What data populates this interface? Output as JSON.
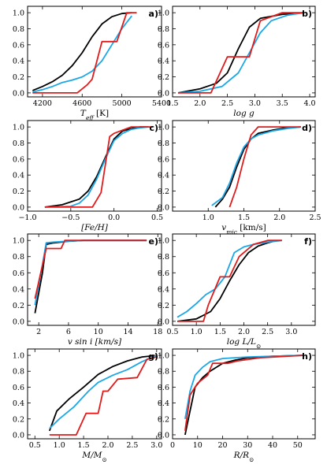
{
  "colors": {
    "black": "#000000",
    "blue": "#1aa7e8",
    "red": "#e01b1b"
  },
  "chart_data": [
    {
      "type": "line",
      "panel_label": "a)",
      "xlabel": "T_eff [K]",
      "xlim": [
        4050,
        5400
      ],
      "ylim": [
        -0.05,
        1.08
      ],
      "xticks": [
        4200,
        4600,
        5000,
        5400
      ],
      "xtick_labels": [
        "4200",
        "4600",
        "5000",
        "5400"
      ],
      "yticks": [
        0,
        0.2,
        0.4,
        0.6,
        0.8,
        1.0
      ],
      "ytick_labels": [
        "0.0",
        "0.2",
        "0.4",
        "0.6",
        "0.8",
        "1.0"
      ],
      "series": [
        {
          "color": "black",
          "x": [
            4100,
            4200,
            4300,
            4400,
            4500,
            4600,
            4700,
            4800,
            4900,
            5000,
            5100
          ],
          "y": [
            0.03,
            0.08,
            0.14,
            0.22,
            0.34,
            0.5,
            0.7,
            0.86,
            0.95,
            0.99,
            1.0
          ]
        },
        {
          "color": "blue",
          "x": [
            4100,
            4200,
            4300,
            4400,
            4500,
            4600,
            4700,
            4800,
            4900,
            5000,
            5100
          ],
          "y": [
            0.01,
            0.04,
            0.08,
            0.13,
            0.16,
            0.2,
            0.27,
            0.4,
            0.6,
            0.8,
            0.96
          ]
        },
        {
          "color": "red",
          "x": [
            4100,
            4550,
            4650,
            4700,
            4800,
            4950,
            5050,
            5150
          ],
          "y": [
            0.0,
            0.0,
            0.1,
            0.17,
            0.64,
            0.64,
            1.0,
            1.0
          ]
        }
      ]
    },
    {
      "type": "line",
      "panel_label": "b)",
      "xlabel": "log g",
      "xlim": [
        1.5,
        4.1
      ],
      "ylim": [
        -0.05,
        1.08
      ],
      "xticks": [
        1.5,
        2.0,
        2.5,
        3.0,
        3.5,
        4.0
      ],
      "xtick_labels": [
        "1.5",
        "2.0",
        "2.5",
        "3.0",
        "3.5",
        "4.0"
      ],
      "yticks": [
        0,
        0.2,
        0.4,
        0.6,
        0.8,
        1.0
      ],
      "ytick_labels": [
        "0.0",
        "0.2",
        "0.4",
        "0.6",
        "0.8",
        "1.0"
      ],
      "series": [
        {
          "color": "black",
          "x": [
            1.6,
            2.0,
            2.3,
            2.5,
            2.7,
            2.9,
            3.1,
            3.5,
            3.9
          ],
          "y": [
            0.0,
            0.05,
            0.12,
            0.25,
            0.55,
            0.82,
            0.93,
            0.98,
            1.0
          ]
        },
        {
          "color": "blue",
          "x": [
            1.6,
            2.0,
            2.4,
            2.7,
            2.9,
            3.1,
            3.3,
            3.6,
            3.9
          ],
          "y": [
            0.0,
            0.02,
            0.08,
            0.25,
            0.5,
            0.75,
            0.9,
            0.97,
            1.0
          ]
        },
        {
          "color": "red",
          "x": [
            1.6,
            2.2,
            2.5,
            2.9,
            3.1,
            3.5,
            3.9
          ],
          "y": [
            0.0,
            0.0,
            0.45,
            0.45,
            0.9,
            1.0,
            1.0
          ]
        }
      ]
    },
    {
      "type": "line",
      "panel_label": "c)",
      "xlabel": "[Fe/H]",
      "xlim": [
        -1.0,
        0.55
      ],
      "ylim": [
        -0.05,
        1.08
      ],
      "xticks": [
        -1.0,
        -0.5,
        0.0,
        0.5
      ],
      "xtick_labels": [
        "−1.0",
        "−0.5",
        "0.0",
        "0.5"
      ],
      "yticks": [
        0,
        0.2,
        0.4,
        0.6,
        0.8,
        1.0
      ],
      "ytick_labels": [
        "0.0",
        "0.2",
        "0.4",
        "0.6",
        "0.8",
        "1.0"
      ],
      "series": [
        {
          "color": "black",
          "x": [
            -0.8,
            -0.6,
            -0.4,
            -0.3,
            -0.2,
            -0.1,
            0.0,
            0.1,
            0.2,
            0.3,
            0.4
          ],
          "y": [
            0.0,
            0.03,
            0.1,
            0.2,
            0.38,
            0.62,
            0.85,
            0.95,
            0.98,
            1.0,
            1.0
          ]
        },
        {
          "color": "blue",
          "x": [
            -0.8,
            -0.5,
            -0.4,
            -0.3,
            -0.2,
            -0.1,
            0.0,
            0.1,
            0.2,
            0.3,
            0.4
          ],
          "y": [
            0.0,
            0.01,
            0.05,
            0.15,
            0.35,
            0.6,
            0.83,
            0.92,
            0.97,
            0.99,
            1.0
          ]
        },
        {
          "color": "red",
          "x": [
            -0.8,
            -0.25,
            -0.15,
            -0.05,
            0.0,
            0.1,
            0.2,
            0.45
          ],
          "y": [
            0.0,
            0.0,
            0.18,
            0.88,
            0.92,
            0.96,
            1.0,
            1.0
          ]
        }
      ]
    },
    {
      "type": "line",
      "panel_label": "d)",
      "xlabel": "v_mic [km/s]",
      "xlim": [
        0.5,
        2.5
      ],
      "ylim": [
        -0.05,
        1.08
      ],
      "xticks": [
        1.0,
        1.5,
        2.0,
        2.5
      ],
      "xtick_labels": [
        "1.0",
        "1.5",
        "2.0",
        "2.5"
      ],
      "yticks": [
        0,
        0.2,
        0.4,
        0.6,
        0.8,
        1.0
      ],
      "ytick_labels": [
        "0.0",
        "0.2",
        "0.4",
        "0.6",
        "0.8",
        "1.0"
      ],
      "series": [
        {
          "color": "black",
          "x": [
            1.1,
            1.2,
            1.3,
            1.4,
            1.5,
            1.6,
            1.7,
            1.9,
            2.1,
            2.3
          ],
          "y": [
            0.0,
            0.1,
            0.25,
            0.5,
            0.72,
            0.85,
            0.92,
            0.96,
            0.99,
            1.0
          ]
        },
        {
          "color": "blue",
          "x": [
            1.05,
            1.2,
            1.3,
            1.4,
            1.5,
            1.6,
            1.7,
            1.9,
            2.1,
            2.3
          ],
          "y": [
            0.02,
            0.12,
            0.3,
            0.55,
            0.75,
            0.85,
            0.9,
            0.95,
            0.98,
            1.0
          ]
        },
        {
          "color": "red",
          "x": [
            1.3,
            1.4,
            1.5,
            1.6,
            1.7,
            2.0,
            2.3
          ],
          "y": [
            0.0,
            0.25,
            0.6,
            0.9,
            1.0,
            1.0,
            1.0
          ]
        }
      ]
    },
    {
      "type": "line",
      "panel_label": "e)",
      "xlabel": "v sin i [km/s]",
      "xlim": [
        0.5,
        18.5
      ],
      "ylim": [
        -0.05,
        1.08
      ],
      "xticks": [
        2,
        6,
        10,
        14,
        18
      ],
      "xtick_labels": [
        "2",
        "6",
        "10",
        "14",
        "18"
      ],
      "yticks": [
        0,
        0.2,
        0.4,
        0.6,
        0.8,
        1.0
      ],
      "ytick_labels": [
        "0.0",
        "0.2",
        "0.4",
        "0.6",
        "0.8",
        "1.0"
      ],
      "series": [
        {
          "color": "black",
          "x": [
            1.5,
            2.5,
            3.0,
            4.0,
            5.0,
            6.0,
            8.0,
            10.0,
            12.0,
            14.0,
            16.5
          ],
          "y": [
            0.1,
            0.6,
            0.95,
            0.97,
            0.98,
            0.99,
            1.0,
            1.0,
            1.0,
            1.0,
            1.0
          ]
        },
        {
          "color": "blue",
          "x": [
            1.5,
            2.5,
            3.0,
            4.0,
            6.0,
            8.0,
            16.5
          ],
          "y": [
            0.2,
            0.7,
            0.97,
            0.98,
            0.99,
            1.0,
            1.0
          ]
        },
        {
          "color": "red",
          "x": [
            1.5,
            3.0,
            5.0,
            5.5,
            7.0,
            16.5
          ],
          "y": [
            0.28,
            0.9,
            0.9,
            1.0,
            1.0,
            1.0
          ]
        }
      ]
    },
    {
      "type": "line",
      "panel_label": "f)",
      "xlabel": "log L/L_⊙",
      "xlim": [
        0.5,
        3.5
      ],
      "ylim": [
        -0.05,
        1.08
      ],
      "xticks": [
        0.5,
        1.0,
        1.5,
        2.0,
        2.5,
        3.0
      ],
      "xtick_labels": [
        "0.5",
        "1.0",
        "1.5",
        "2.0",
        "2.5",
        "3.0"
      ],
      "yticks": [
        0,
        0.2,
        0.4,
        0.6,
        0.8,
        1.0
      ],
      "ytick_labels": [
        "0.0",
        "0.2",
        "0.4",
        "0.6",
        "0.8",
        "1.0"
      ],
      "series": [
        {
          "color": "black",
          "x": [
            0.6,
            1.0,
            1.3,
            1.5,
            1.7,
            1.9,
            2.1,
            2.3,
            2.5,
            2.7
          ],
          "y": [
            0.0,
            0.03,
            0.12,
            0.28,
            0.5,
            0.7,
            0.85,
            0.93,
            0.97,
            1.0
          ]
        },
        {
          "color": "blue",
          "x": [
            0.6,
            0.8,
            1.0,
            1.2,
            1.4,
            1.6,
            1.8,
            2.0,
            2.2,
            2.5,
            2.8
          ],
          "y": [
            0.05,
            0.12,
            0.22,
            0.33,
            0.4,
            0.55,
            0.85,
            0.92,
            0.95,
            0.98,
            1.0
          ]
        },
        {
          "color": "red",
          "x": [
            0.6,
            1.15,
            1.25,
            1.5,
            1.7,
            1.9,
            2.2,
            2.5,
            2.8
          ],
          "y": [
            0.0,
            0.0,
            0.2,
            0.55,
            0.55,
            0.8,
            0.95,
            1.0,
            1.0
          ]
        }
      ]
    },
    {
      "type": "line",
      "panel_label": "g)",
      "xlabel": "M/M_⊙",
      "xlim": [
        0.35,
        3.1
      ],
      "ylim": [
        -0.05,
        1.08
      ],
      "xticks": [
        0.5,
        1.0,
        1.5,
        2.0,
        2.5,
        3.0
      ],
      "xtick_labels": [
        "0.5",
        "1.0",
        "1.5",
        "2.0",
        "2.5",
        "3.0"
      ],
      "yticks": [
        0,
        0.2,
        0.4,
        0.6,
        0.8,
        1.0
      ],
      "ytick_labels": [
        "0.0",
        "0.2",
        "0.4",
        "0.6",
        "0.8",
        "1.0"
      ],
      "series": [
        {
          "color": "black",
          "x": [
            0.8,
            0.95,
            1.2,
            1.5,
            1.8,
            2.1,
            2.4,
            2.7,
            3.0
          ],
          "y": [
            0.05,
            0.3,
            0.45,
            0.6,
            0.76,
            0.86,
            0.93,
            0.98,
            1.0
          ]
        },
        {
          "color": "blue",
          "x": [
            0.8,
            1.0,
            1.3,
            1.6,
            1.8,
            2.1,
            2.4,
            2.7,
            3.0
          ],
          "y": [
            0.08,
            0.2,
            0.35,
            0.55,
            0.66,
            0.75,
            0.82,
            0.92,
            1.0
          ]
        },
        {
          "color": "red",
          "x": [
            0.8,
            1.35,
            1.55,
            1.8,
            1.9,
            2.0,
            2.2,
            2.6,
            2.8,
            3.0
          ],
          "y": [
            0.0,
            0.0,
            0.27,
            0.27,
            0.55,
            0.55,
            0.7,
            0.72,
            0.95,
            0.98
          ]
        }
      ]
    },
    {
      "type": "line",
      "panel_label": "h)",
      "xlabel": "R/R_⊙",
      "xlim": [
        0,
        57
      ],
      "ylim": [
        -0.05,
        1.08
      ],
      "xticks": [
        0,
        10,
        20,
        30,
        40,
        50
      ],
      "xtick_labels": [
        "0",
        "10",
        "20",
        "30",
        "40",
        "50"
      ],
      "yticks": [
        0,
        0.2,
        0.4,
        0.6,
        0.8,
        1.0
      ],
      "ytick_labels": [
        "0.0",
        "0.2",
        "0.4",
        "0.6",
        "0.8",
        "1.0"
      ],
      "series": [
        {
          "color": "black",
          "x": [
            5,
            7,
            9,
            12,
            15,
            20,
            25,
            30,
            40,
            52
          ],
          "y": [
            0.0,
            0.3,
            0.6,
            0.72,
            0.8,
            0.9,
            0.94,
            0.97,
            0.99,
            1.0
          ]
        },
        {
          "color": "blue",
          "x": [
            5,
            7,
            9,
            12,
            15,
            20,
            30,
            40,
            52
          ],
          "y": [
            0.2,
            0.55,
            0.75,
            0.85,
            0.92,
            0.96,
            0.98,
            0.99,
            1.0
          ]
        },
        {
          "color": "red",
          "x": [
            5,
            7,
            10,
            14,
            16,
            22,
            26,
            35,
            52
          ],
          "y": [
            0.05,
            0.5,
            0.65,
            0.75,
            0.9,
            0.9,
            0.93,
            0.97,
            1.0
          ]
        }
      ]
    }
  ]
}
